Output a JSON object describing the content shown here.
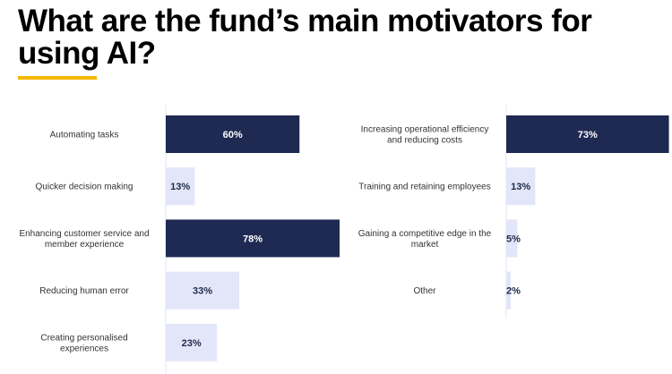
{
  "title": "What are the fund’s main motivators for using AI?",
  "colors": {
    "accent_underline": "#f5b800",
    "bar_high": "#1e2a52",
    "bar_low": "#e3e6f8",
    "axis_line": "#e3e6f8"
  },
  "chart_data": [
    {
      "type": "bar",
      "orientation": "horizontal",
      "categories": [
        "Automating tasks",
        "Quicker decision making",
        "Enhancing customer service and member experience",
        "Reducing human error",
        "Creating personalised experiences"
      ],
      "values": [
        60,
        13,
        78,
        33,
        23
      ],
      "value_labels": [
        "60%",
        "13%",
        "78%",
        "33%",
        "23%"
      ],
      "unit": "%"
    },
    {
      "type": "bar",
      "orientation": "horizontal",
      "categories": [
        "Increasing operational efficiency and reducing costs",
        "Training and retaining employees",
        "Gaining a competitive edge in the market",
        "Other"
      ],
      "values": [
        73,
        13,
        5,
        2
      ],
      "value_labels": [
        "73%",
        "13%",
        "5%",
        "2%"
      ],
      "unit": "%"
    }
  ]
}
